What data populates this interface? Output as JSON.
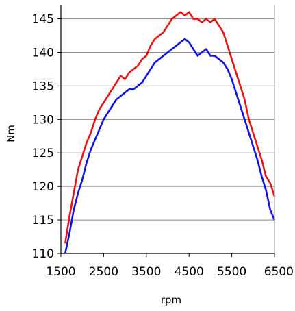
{
  "chart_data": {
    "type": "line",
    "title": "",
    "xlabel": "rpm",
    "ylabel": "Nm",
    "xlim": [
      1500,
      6500
    ],
    "ylim": [
      110,
      147
    ],
    "xticks": [
      1500,
      2500,
      3500,
      4500,
      5500,
      6500
    ],
    "xtick_labels": [
      "1500",
      "2500",
      "3500",
      "4500",
      "5500",
      "6500"
    ],
    "yticks": [
      110,
      115,
      120,
      125,
      130,
      135,
      140,
      145
    ],
    "ytick_labels": [
      "110",
      "115",
      "120",
      "125",
      "130",
      "135",
      "140",
      "145"
    ],
    "grid": "horizontal",
    "legend": "none",
    "series": [
      {
        "color": "#ee1111",
        "x": [
          1600,
          1700,
          1800,
          1900,
          2000,
          2100,
          2200,
          2300,
          2400,
          2500,
          2600,
          2700,
          2800,
          2900,
          3000,
          3100,
          3200,
          3300,
          3400,
          3500,
          3600,
          3700,
          3800,
          3900,
          4000,
          4100,
          4200,
          4300,
          4400,
          4500,
          4600,
          4700,
          4800,
          4900,
          5000,
          5100,
          5200,
          5300,
          5400,
          5500,
          5600,
          5700,
          5800,
          5900,
          6000,
          6100,
          6200,
          6300,
          6400,
          6500
        ],
        "values": [
          111.5,
          115.5,
          119.0,
          122.5,
          124.5,
          126.5,
          128.0,
          130.0,
          131.5,
          132.5,
          133.5,
          134.5,
          135.5,
          136.5,
          136.0,
          137.0,
          137.5,
          138.0,
          139.0,
          139.5,
          141.0,
          142.0,
          142.5,
          143.0,
          144.0,
          145.0,
          145.5,
          146.0,
          145.5,
          146.0,
          145.0,
          145.0,
          144.5,
          145.0,
          144.5,
          145.0,
          144.0,
          143.0,
          141.0,
          139.0,
          137.0,
          135.0,
          133.0,
          130.0,
          128.0,
          126.0,
          124.0,
          121.5,
          120.5,
          118.5
        ]
      },
      {
        "color": "#1111ee",
        "x": [
          1600,
          1700,
          1800,
          1900,
          2000,
          2100,
          2200,
          2300,
          2400,
          2500,
          2600,
          2700,
          2800,
          2900,
          3000,
          3100,
          3200,
          3300,
          3400,
          3500,
          3600,
          3700,
          3800,
          3900,
          4000,
          4100,
          4200,
          4300,
          4400,
          4500,
          4600,
          4700,
          4800,
          4900,
          5000,
          5100,
          5200,
          5300,
          5400,
          5500,
          5600,
          5700,
          5800,
          5900,
          6000,
          6100,
          6200,
          6300,
          6400,
          6500
        ],
        "values": [
          110.0,
          113.0,
          116.5,
          119.0,
          121.0,
          123.5,
          125.5,
          127.0,
          128.5,
          130.0,
          131.0,
          132.0,
          133.0,
          133.5,
          134.0,
          134.5,
          134.5,
          135.0,
          135.5,
          136.5,
          137.5,
          138.5,
          139.0,
          139.5,
          140.0,
          140.5,
          141.0,
          141.5,
          142.0,
          141.5,
          140.5,
          139.5,
          140.0,
          140.5,
          139.5,
          139.5,
          139.0,
          138.5,
          137.5,
          136.0,
          134.0,
          132.0,
          130.0,
          128.0,
          126.0,
          124.0,
          121.5,
          119.5,
          116.5,
          115.0
        ]
      }
    ]
  }
}
